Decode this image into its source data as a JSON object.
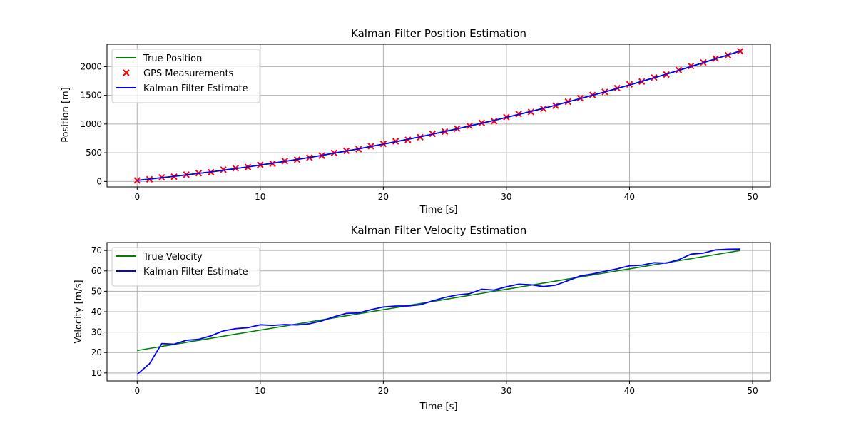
{
  "chart_data": [
    {
      "type": "line",
      "title": "Kalman Filter Position Estimation",
      "xlabel": "Time [s]",
      "ylabel": "Position [m]",
      "xlim": [
        -2.45,
        51.45
      ],
      "ylim": [
        -95,
        2390
      ],
      "xticks": [
        0,
        10,
        20,
        30,
        40,
        50
      ],
      "yticks": [
        0,
        500,
        1000,
        1500,
        2000
      ],
      "grid": true,
      "legend": "top-left",
      "x": [
        0,
        1,
        2,
        3,
        4,
        5,
        6,
        7,
        8,
        9,
        10,
        11,
        12,
        13,
        14,
        15,
        16,
        17,
        18,
        19,
        20,
        21,
        22,
        23,
        24,
        25,
        26,
        27,
        28,
        29,
        30,
        31,
        32,
        33,
        34,
        35,
        36,
        37,
        38,
        39,
        40,
        41,
        42,
        43,
        44,
        45,
        46,
        47,
        48,
        49
      ],
      "series": [
        {
          "name": "True Position",
          "kind": "line",
          "color": "#008000",
          "values": [
            20,
            42,
            65,
            89,
            114,
            140,
            167,
            195,
            224,
            254,
            285,
            317,
            350,
            384,
            419,
            455,
            492,
            530,
            569,
            609,
            650,
            692,
            735,
            779,
            824,
            870,
            917,
            965,
            1014,
            1064,
            1115,
            1167,
            1220,
            1274,
            1329,
            1385,
            1442,
            1500,
            1559,
            1619,
            1680,
            1742,
            1805,
            1869,
            1934,
            2000,
            2067,
            2135,
            2204,
            2274
          ]
        },
        {
          "name": "GPS Measurements",
          "kind": "scatter",
          "marker": "x",
          "color": "#ff0000",
          "values": [
            18,
            38,
            70,
            83,
            118,
            145,
            160,
            205,
            230,
            250,
            290,
            310,
            355,
            380,
            415,
            450,
            498,
            535,
            563,
            615,
            655,
            700,
            725,
            770,
            830,
            868,
            922,
            968,
            1020,
            1050,
            1120,
            1175,
            1210,
            1265,
            1320,
            1390,
            1450,
            1505,
            1560,
            1625,
            1690,
            1740,
            1810,
            1862,
            1940,
            2010,
            2072,
            2140,
            2200,
            2270
          ]
        },
        {
          "name": "Kalman Filter Estimate",
          "kind": "line",
          "color": "#0000ff",
          "values": [
            18,
            40,
            66,
            88,
            115,
            141,
            166,
            196,
            225,
            253,
            287,
            316,
            351,
            383,
            418,
            454,
            493,
            531,
            568,
            610,
            651,
            693,
            734,
            778,
            825,
            871,
            918,
            966,
            1015,
            1062,
            1116,
            1168,
            1219,
            1272,
            1328,
            1386,
            1443,
            1501,
            1559,
            1620,
            1681,
            1742,
            1806,
            1868,
            1935,
            2002,
            2068,
            2136,
            2203,
            2272
          ]
        }
      ]
    },
    {
      "type": "line",
      "title": "Kalman Filter Velocity Estimation",
      "xlabel": "Time [s]",
      "ylabel": "Velocity [m/s]",
      "xlim": [
        -2.45,
        51.45
      ],
      "ylim": [
        6.1,
        73.9
      ],
      "xticks": [
        0,
        10,
        20,
        30,
        40,
        50
      ],
      "yticks": [
        10,
        20,
        30,
        40,
        50,
        60,
        70
      ],
      "grid": true,
      "legend": "top-left",
      "x": [
        0,
        1,
        2,
        3,
        4,
        5,
        6,
        7,
        8,
        9,
        10,
        11,
        12,
        13,
        14,
        15,
        16,
        17,
        18,
        19,
        20,
        21,
        22,
        23,
        24,
        25,
        26,
        27,
        28,
        29,
        30,
        31,
        32,
        33,
        34,
        35,
        36,
        37,
        38,
        39,
        40,
        41,
        42,
        43,
        44,
        45,
        46,
        47,
        48,
        49
      ],
      "series": [
        {
          "name": "True Velocity",
          "kind": "line",
          "color": "#008000",
          "values": [
            21,
            22,
            23,
            24,
            25,
            26,
            27,
            28,
            29,
            30,
            31,
            32,
            33,
            34,
            35,
            36,
            37,
            38,
            39,
            40,
            41,
            42,
            43,
            44,
            45,
            46,
            47,
            48,
            49,
            50,
            51,
            52,
            53,
            54,
            55,
            56,
            57,
            58,
            59,
            60,
            61,
            62,
            63,
            64,
            65,
            66,
            67,
            68,
            69,
            70
          ]
        },
        {
          "name": "Kalman Filter Estimate",
          "kind": "line",
          "color": "#0000ff",
          "values": [
            9.3,
            14.5,
            24.4,
            24.1,
            26,
            26.5,
            28.2,
            30.6,
            31.7,
            32.2,
            33.6,
            33.3,
            33.7,
            33.5,
            34.1,
            35.5,
            37.5,
            39.2,
            39.4,
            41,
            42.3,
            42.8,
            42.8,
            43.4,
            45.3,
            47,
            48.2,
            48.8,
            51,
            50.6,
            52.2,
            53.5,
            53.2,
            52.3,
            53,
            55.2,
            57.5,
            58.5,
            59.8,
            61,
            62.5,
            62.8,
            64,
            63.8,
            65.5,
            68.2,
            68.7,
            70.3,
            70.6,
            70.7
          ]
        }
      ]
    }
  ]
}
